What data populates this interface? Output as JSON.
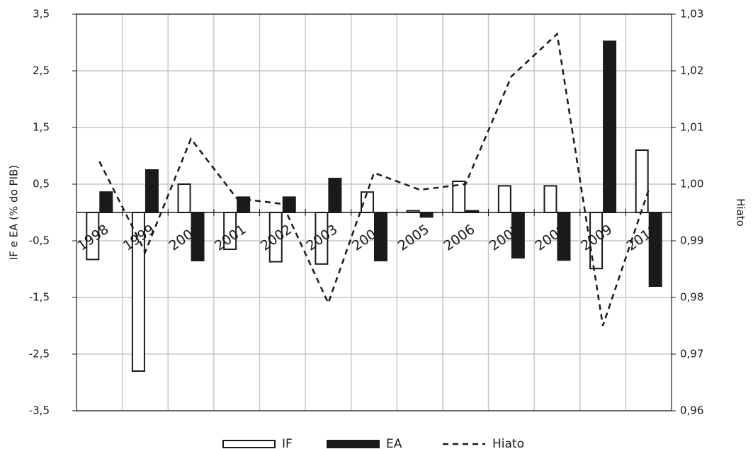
{
  "chart_data": {
    "type": "bar_line",
    "y_label": "IF e EA (% do PIB)",
    "y2_label": "Hiato",
    "categories": [
      "1998",
      "1999",
      "2000",
      "2001",
      "2002",
      "2003",
      "2004",
      "2005",
      "2006",
      "2007",
      "2008",
      "2009",
      "2010"
    ],
    "series": [
      {
        "name": "IF",
        "type": "bar",
        "color": "#ffffff",
        "values": [
          -0.83,
          -2.8,
          0.5,
          -0.65,
          -0.87,
          -0.91,
          0.36,
          0.03,
          0.55,
          0.47,
          0.47,
          -0.99,
          1.1
        ]
      },
      {
        "name": "EA",
        "type": "bar",
        "color": "#1a1a1a",
        "values": [
          0.36,
          0.75,
          -0.85,
          0.27,
          0.27,
          0.6,
          -0.85,
          -0.08,
          0.03,
          -0.8,
          -0.84,
          3.02,
          -1.3
        ]
      },
      {
        "name": "Hiato",
        "type": "line",
        "color": "#1a1a1a",
        "axis": "y2",
        "values": [
          1.004,
          0.988,
          1.008,
          0.9975,
          0.9965,
          0.979,
          1.002,
          0.999,
          1.0,
          1.019,
          1.0265,
          0.975,
          0.999
        ]
      }
    ],
    "ylim": [
      -3.5,
      3.5
    ],
    "yticks": [
      {
        "value": -3.5,
        "label": "-3,5"
      },
      {
        "value": -2.5,
        "label": "-2,5"
      },
      {
        "value": -1.5,
        "label": "-1,5"
      },
      {
        "value": -0.5,
        "label": "-0,5"
      },
      {
        "value": 0.5,
        "label": "0,5"
      },
      {
        "value": 1.5,
        "label": "1,5"
      },
      {
        "value": 2.5,
        "label": "2,5"
      },
      {
        "value": 3.5,
        "label": "3,5"
      }
    ],
    "y2lim": [
      0.96,
      1.03
    ],
    "y2ticks": [
      {
        "value": 0.96,
        "label": "0,96"
      },
      {
        "value": 0.97,
        "label": "0,97"
      },
      {
        "value": 0.98,
        "label": "0,98"
      },
      {
        "value": 0.99,
        "label": "0,99"
      },
      {
        "value": 1.0,
        "label": "1,00"
      },
      {
        "value": 1.01,
        "label": "1,01"
      },
      {
        "value": 1.02,
        "label": "1,02"
      },
      {
        "value": 1.03,
        "label": "1,03"
      }
    ],
    "grid": true,
    "legend": "bottom"
  }
}
